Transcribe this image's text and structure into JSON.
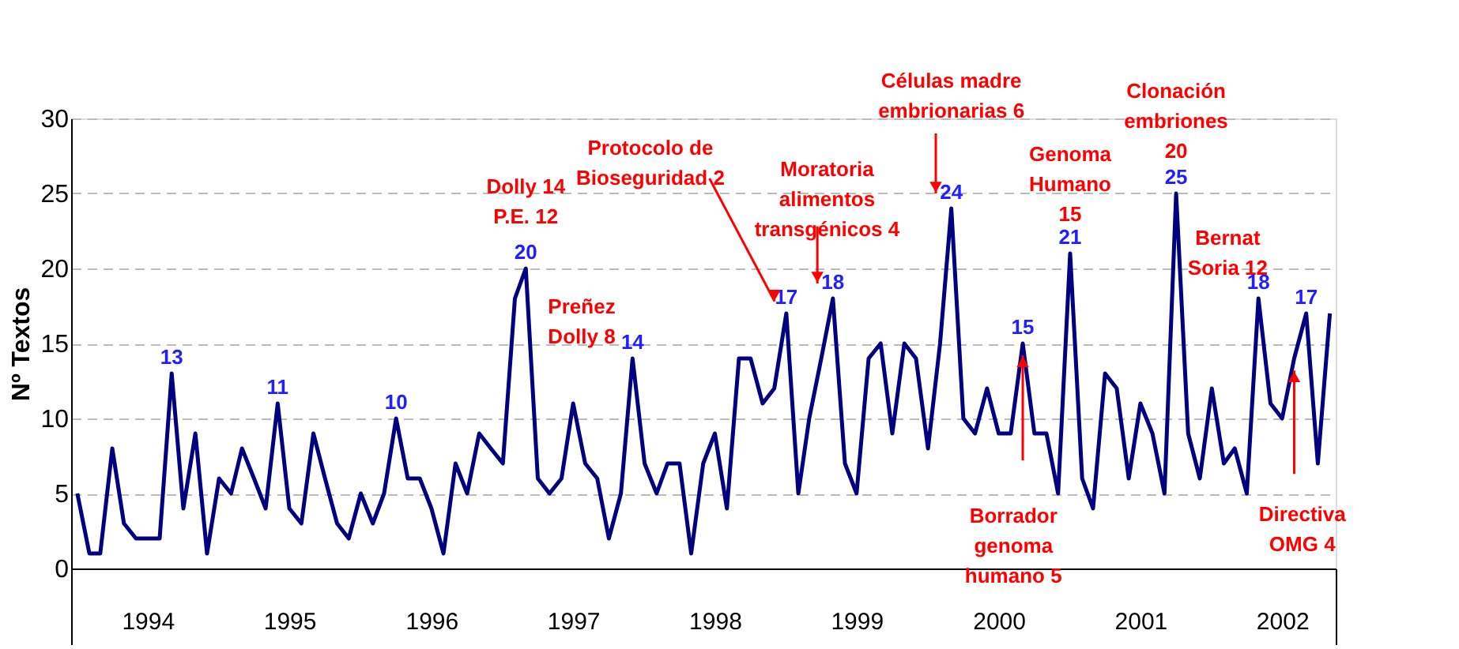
{
  "chart_data": {
    "type": "line",
    "ylabel": "Nº Textos",
    "x": [
      "1994-01",
      "1994-02",
      "1994-03",
      "1994-04",
      "1994-05",
      "1994-06",
      "1994-07",
      "1994-08",
      "1994-09",
      "1994-10",
      "1994-11",
      "1994-12",
      "1995-01",
      "1995-02",
      "1995-03",
      "1995-04",
      "1995-05",
      "1995-06",
      "1995-07",
      "1995-08",
      "1995-09",
      "1995-10",
      "1995-11",
      "1995-12",
      "1996-01",
      "1996-02",
      "1996-03",
      "1996-04",
      "1996-05",
      "1996-06",
      "1996-07",
      "1996-08",
      "1996-09",
      "1996-10",
      "1996-11",
      "1996-12",
      "1997-01",
      "1997-02",
      "1997-03",
      "1997-04",
      "1997-05",
      "1997-06",
      "1997-07",
      "1997-08",
      "1997-09",
      "1997-10",
      "1997-11",
      "1997-12",
      "1998-01",
      "1998-02",
      "1998-03",
      "1998-04",
      "1998-05",
      "1998-06",
      "1998-07",
      "1998-08",
      "1998-09",
      "1998-10",
      "1998-11",
      "1998-12",
      "1999-01",
      "1999-02",
      "1999-03",
      "1999-04",
      "1999-05",
      "1999-06",
      "1999-07",
      "1999-08",
      "1999-09",
      "1999-10",
      "1999-11",
      "1999-12",
      "2000-01",
      "2000-02",
      "2000-03",
      "2000-04",
      "2000-05",
      "2000-06",
      "2000-07",
      "2000-08",
      "2000-09",
      "2000-10",
      "2000-11",
      "2000-12",
      "2001-01",
      "2001-02",
      "2001-03",
      "2001-04",
      "2001-05",
      "2001-06",
      "2001-07",
      "2001-08",
      "2001-09",
      "2001-10",
      "2001-11",
      "2001-12",
      "2002-01",
      "2002-02",
      "2002-03",
      "2002-04",
      "2002-05",
      "2002-06",
      "2002-07",
      "2002-08",
      "2002-09",
      "2002-10",
      "2002-11"
    ],
    "series": [
      {
        "color": "#000080",
        "values": [
          5,
          1,
          1,
          8,
          3,
          2,
          2,
          2,
          13,
          4,
          9,
          1,
          6,
          5,
          8,
          6,
          4,
          11,
          4,
          3,
          9,
          6,
          3,
          2,
          5,
          3,
          5,
          10,
          6,
          6,
          4,
          1,
          7,
          5,
          9,
          8,
          7,
          18,
          20,
          6,
          5,
          6,
          11,
          7,
          6,
          2,
          5,
          14,
          7,
          5,
          7,
          7,
          1,
          7,
          9,
          4,
          14,
          14,
          11,
          12,
          17,
          5,
          10,
          14,
          18,
          7,
          5,
          14,
          15,
          9,
          15,
          14,
          8,
          15,
          24,
          10,
          9,
          12,
          9,
          9,
          15,
          9,
          9,
          5,
          21,
          6,
          4,
          13,
          12,
          6,
          11,
          9,
          5,
          25,
          9,
          6,
          12,
          7,
          8,
          5,
          18,
          11,
          10,
          14,
          17,
          7,
          17
        ],
        "value_labels": [
          null,
          null,
          null,
          null,
          null,
          null,
          null,
          null,
          "13",
          null,
          null,
          null,
          null,
          null,
          null,
          null,
          null,
          "11",
          null,
          null,
          null,
          null,
          null,
          null,
          null,
          null,
          null,
          "10",
          null,
          null,
          null,
          null,
          null,
          null,
          null,
          null,
          null,
          null,
          "20",
          null,
          null,
          null,
          null,
          null,
          null,
          null,
          null,
          "14",
          null,
          null,
          null,
          null,
          null,
          null,
          null,
          null,
          null,
          null,
          null,
          null,
          "17",
          null,
          null,
          null,
          "18",
          null,
          null,
          null,
          null,
          null,
          null,
          null,
          null,
          null,
          "24",
          null,
          null,
          null,
          null,
          null,
          "15",
          null,
          null,
          null,
          "21",
          null,
          null,
          null,
          null,
          null,
          null,
          null,
          null,
          "25",
          null,
          null,
          null,
          null,
          null,
          null,
          "18",
          null,
          null,
          null,
          "17",
          null,
          null
        ]
      }
    ],
    "ylim": [
      0,
      30
    ],
    "yticks": [
      0,
      5,
      10,
      15,
      20,
      25,
      30
    ],
    "xlim": [
      "1993-12-16",
      "2002-11-16"
    ],
    "xticks": [
      {
        "value": "1993-12-16",
        "label": null
      },
      {
        "value": "1994-07-01",
        "label": "1994"
      },
      {
        "value": "1995-07-01",
        "label": "1995"
      },
      {
        "value": "1996-07-01",
        "label": "1996"
      },
      {
        "value": "1997-07-01",
        "label": "1997"
      },
      {
        "value": "1998-07-01",
        "label": "1998"
      },
      {
        "value": "1999-07-01",
        "label": "1999"
      },
      {
        "value": "2000-07-01",
        "label": "2000"
      },
      {
        "value": "2001-07-01",
        "label": "2001"
      },
      {
        "value": "2002-07-01",
        "label": "2002"
      },
      {
        "value": "2002-11-16",
        "label": null
      }
    ],
    "grid": "y",
    "line_style": "solid",
    "marker": "none",
    "annotations": [
      {
        "text": "Dolly 14\nP.E. 12",
        "x": "1997-03",
        "y": 20
      },
      {
        "text": "Preñez\nDolly  8",
        "x": "1997-12",
        "y": 14
      },
      "Protocolo de\nBioseguridad 2",
      {
        "text": "Moratoria\nalimentos\ntransgénicos 4",
        "x": "1999-05",
        "y": 18
      },
      "Células madre\nembrionarias 6",
      {
        "text": "Genoma\nHumano\n15",
        "x": "2001-01",
        "y": 21
      },
      {
        "text": "Clonación\nembriones\n20",
        "x": "2001-10",
        "y": 25
      },
      {
        "text": "Bernat\nSoria 12",
        "x": "2002-05",
        "y": 18
      },
      "Borrador\ngenoma\nhumano 5",
      "Directiva\nOMG 4"
    ]
  }
}
